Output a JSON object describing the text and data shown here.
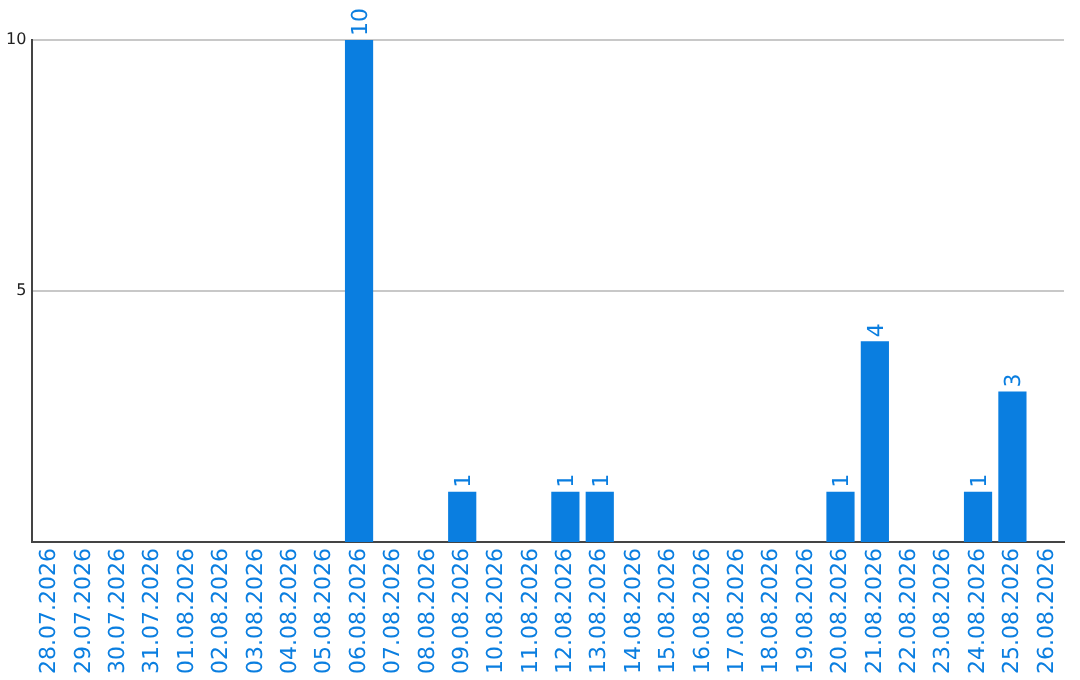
{
  "chart_data": {
    "type": "bar",
    "categories": [
      "28.07.2026",
      "29.07.2026",
      "30.07.2026",
      "31.07.2026",
      "01.08.2026",
      "02.08.2026",
      "03.08.2026",
      "04.08.2026",
      "05.08.2026",
      "06.08.2026",
      "07.08.2026",
      "08.08.2026",
      "09.08.2026",
      "10.08.2026",
      "11.08.2026",
      "12.08.2026",
      "13.08.2026",
      "14.08.2026",
      "15.08.2026",
      "16.08.2026",
      "17.08.2026",
      "18.08.2026",
      "19.08.2026",
      "20.08.2026",
      "21.08.2026",
      "22.08.2026",
      "23.08.2026",
      "24.08.2026",
      "25.08.2026",
      "26.08.2026"
    ],
    "values": [
      0,
      0,
      0,
      0,
      0,
      0,
      0,
      0,
      0,
      10,
      0,
      0,
      1,
      0,
      0,
      1,
      1,
      0,
      0,
      0,
      0,
      0,
      0,
      1,
      4,
      0,
      0,
      1,
      3,
      0
    ],
    "value_labels": [
      null,
      null,
      null,
      null,
      null,
      null,
      null,
      null,
      null,
      "10",
      null,
      null,
      "1",
      null,
      null,
      "1",
      "1",
      null,
      null,
      null,
      null,
      null,
      null,
      "1",
      "4",
      null,
      null,
      "1",
      "3",
      null
    ],
    "color": "#0a7ee0",
    "ylim": [
      0,
      10
    ],
    "yticks": [
      5,
      10
    ],
    "grid": "y",
    "legend": false
  }
}
